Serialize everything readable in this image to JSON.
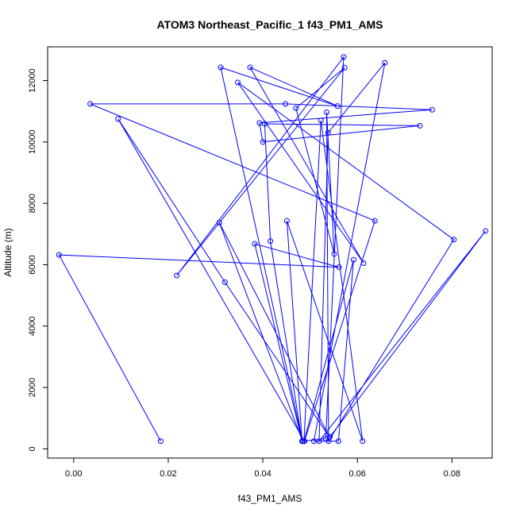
{
  "chart_data": {
    "type": "line",
    "title": "ATOM3 Northeast_Pacific_1 f43_PM1_AMS",
    "xlabel": "f43_PM1_AMS",
    "ylabel": "Altitude (m)",
    "xlim": [
      -0.0055,
      0.0885
    ],
    "ylim": [
      -300,
      13100
    ],
    "xticks": [
      0.0,
      0.02,
      0.04,
      0.06,
      0.08
    ],
    "xtick_labels": [
      "0.00",
      "0.02",
      "0.04",
      "0.06",
      "0.08"
    ],
    "yticks": [
      0,
      2000,
      4000,
      6000,
      8000,
      10000,
      12000
    ],
    "ytick_labels": [
      "0",
      "2000",
      "4000",
      "6000",
      "8000",
      "10000",
      "12000"
    ],
    "grid": false,
    "series": [
      {
        "color": "#0000ff",
        "marker": "open-circle",
        "x": [
          0.0184,
          -0.0031,
          0.0561,
          0.0383,
          0.0483,
          0.0416,
          0.0404,
          0.0732,
          0.04,
          0.0393,
          0.0758,
          0.0448,
          0.0035,
          0.0637,
          0.0488,
          0.0094,
          0.032,
          0.0541,
          0.0308,
          0.0484,
          0.0311,
          0.0558,
          0.0373,
          0.0613,
          0.0347,
          0.0804,
          0.0539,
          0.0535,
          0.0551,
          0.047,
          0.0573,
          0.0218,
          0.0571,
          0.0533,
          0.0483,
          0.0451,
          0.0611,
          0.0523,
          0.0487,
          0.0592,
          0.056,
          0.0508,
          0.0658,
          0.0538,
          0.0519,
          0.0871,
          0.0542
        ],
        "y": [
          250,
          6320,
          5920,
          6680,
          250,
          6770,
          10590,
          10530,
          10000,
          10620,
          11050,
          11240,
          11240,
          7430,
          250,
          10750,
          5430,
          380,
          7370,
          250,
          12430,
          11170,
          12430,
          6050,
          11940,
          6820,
          250,
          10970,
          6350,
          11100,
          12420,
          5650,
          12770,
          330,
          250,
          7430,
          250,
          10700,
          250,
          6160,
          250,
          250,
          12580,
          10300,
          250,
          7100,
          390
        ]
      }
    ]
  }
}
